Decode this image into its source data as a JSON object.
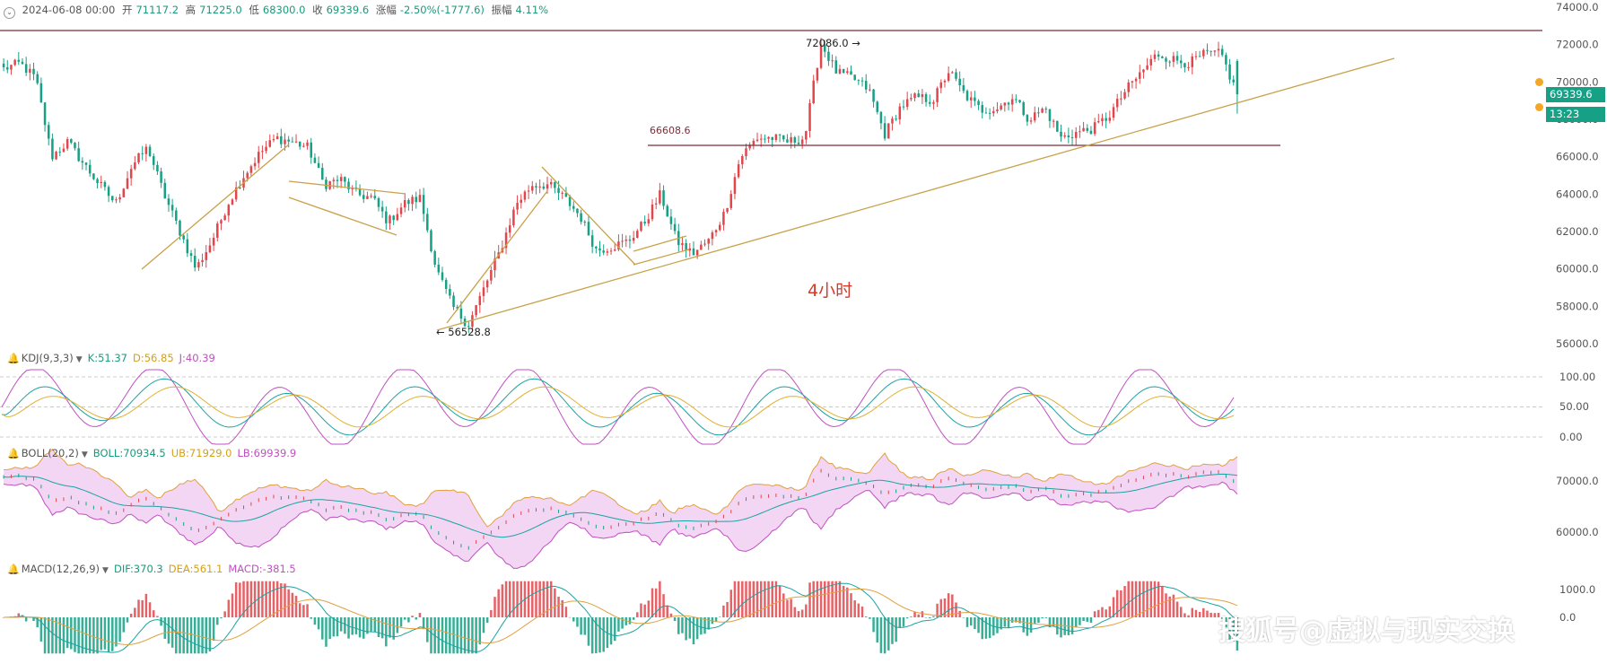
{
  "header": {
    "date": "2024-06-08 00:00",
    "open_label": "开",
    "open": "71117.2",
    "high_label": "高",
    "high": "71225.0",
    "low_label": "低",
    "low": "68300.0",
    "close_label": "收",
    "close": "69339.6",
    "change_label": "涨幅",
    "change": "-2.50%(-1777.6)",
    "amplitude_label": "振幅",
    "amplitude": "4.11%"
  },
  "price_tag": {
    "price": "69339.6",
    "countdown": "13:23"
  },
  "annotations": {
    "high_label": "72086.0 →",
    "low_label": "← 56528.8",
    "resistance_label": "66608.6",
    "timeframe": "4小时"
  },
  "kdj_legend": {
    "name": "KDJ(9,3,3)",
    "k": "K:51.37",
    "d": "D:56.85",
    "j": "J:40.39"
  },
  "boll_legend": {
    "name": "BOLL(20,2)",
    "mid": "BOLL:70934.5",
    "ub": "UB:71929.0",
    "lb": "LB:69939.9"
  },
  "macd_legend": {
    "name": "MACD(12,26,9)",
    "dif": "DIF:370.3",
    "dea": "DEA:561.1",
    "macd": "MACD:-381.5"
  },
  "watermark": "搜狐号@虚拟与现实交换",
  "colors": {
    "up": "#e0474c",
    "down": "#16a085",
    "trendline": "#c8a24a",
    "resistance": "#7a2f3a",
    "k": "#1aa3a3",
    "d": "#e0b030",
    "j": "#c050c0"
  },
  "chart_data": [
    {
      "type": "candlestick",
      "timeframe": "4小时",
      "ylim": [
        55000,
        74000
      ],
      "yticks": [
        "74000.0",
        "72000.0",
        "70000.0",
        "68000.0",
        "66000.0",
        "64000.0",
        "62000.0",
        "60000.0",
        "58000.0",
        "56000.0"
      ],
      "marked_high": 72086.0,
      "marked_low": 56528.8,
      "horizontal_level": 66608.6,
      "last": {
        "open": 71117.2,
        "high": 71225.0,
        "low": 68300.0,
        "close": 69339.6
      },
      "price_path": [
        70700,
        71000,
        70200,
        66000,
        66800,
        65600,
        64500,
        63500,
        65500,
        66500,
        64000,
        62000,
        60000,
        61500,
        63500,
        65000,
        66200,
        67000,
        66800,
        66500,
        64500,
        64800,
        64000,
        63800,
        62500,
        63500,
        63800,
        60000,
        58000,
        57000,
        59000,
        61000,
        63500,
        64500,
        64500,
        63800,
        62800,
        61000,
        61200,
        61500,
        62500,
        64000,
        61500,
        60800,
        61500,
        63000,
        66000,
        67000,
        67000,
        66800,
        67000,
        72086,
        70500,
        70200,
        69600,
        67200,
        68700,
        69200,
        69000,
        70600,
        69300,
        68500,
        68600,
        69200,
        68000,
        68600,
        67000,
        67300,
        67500,
        68200,
        69500,
        70500,
        71500,
        71200,
        71000,
        71500,
        71500,
        69300
      ]
    },
    {
      "type": "line",
      "name": "KDJ(9,3,3)",
      "yticks": [
        "100.00",
        "50.00",
        "0.00"
      ],
      "series": [
        {
          "name": "K",
          "last": 51.37
        },
        {
          "name": "D",
          "last": 56.85
        },
        {
          "name": "J",
          "last": 40.39
        }
      ]
    },
    {
      "type": "line",
      "name": "BOLL(20,2)",
      "yticks": [
        "70000.0",
        "60000.0"
      ],
      "series": [
        {
          "name": "BOLL",
          "last": 70934.5
        },
        {
          "name": "UB",
          "last": 71929.0
        },
        {
          "name": "LB",
          "last": 69939.9
        }
      ]
    },
    {
      "type": "bar",
      "name": "MACD(12,26,9)",
      "yticks": [
        "1000.0",
        "0.0"
      ],
      "series": [
        {
          "name": "DIF",
          "last": 370.3
        },
        {
          "name": "DEA",
          "last": 561.1
        },
        {
          "name": "MACD",
          "last": -381.5
        }
      ]
    }
  ]
}
